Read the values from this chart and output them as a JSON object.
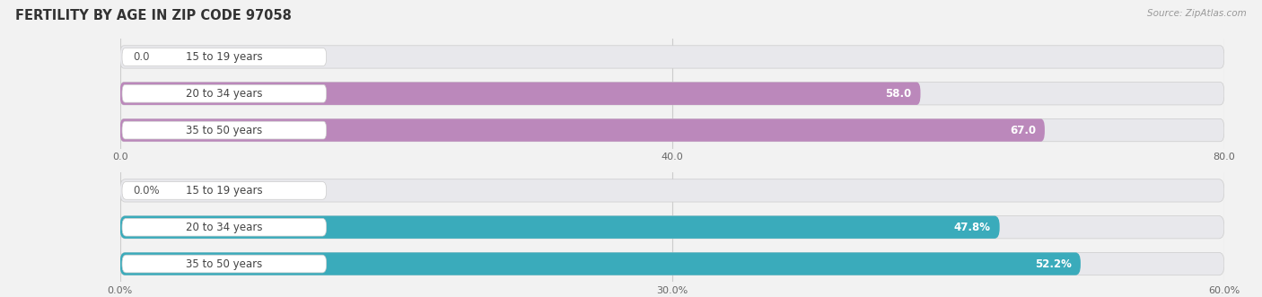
{
  "title": "FERTILITY BY AGE IN ZIP CODE 97058",
  "source": "Source: ZipAtlas.com",
  "chart1": {
    "categories": [
      "15 to 19 years",
      "20 to 34 years",
      "35 to 50 years"
    ],
    "values": [
      0.0,
      58.0,
      67.0
    ],
    "xlim": [
      0,
      80.0
    ],
    "xticks": [
      0.0,
      40.0,
      80.0
    ],
    "xtick_labels": [
      "0.0",
      "40.0",
      "80.0"
    ],
    "bar_color": "#bb88bb",
    "bar_bg_color": "#e8e8ec",
    "label_pill_color": "#f5f5f5",
    "label_color_inside": "#ffffff",
    "label_color_outside": "#555555"
  },
  "chart2": {
    "categories": [
      "15 to 19 years",
      "20 to 34 years",
      "35 to 50 years"
    ],
    "values": [
      0.0,
      47.8,
      52.2
    ],
    "xlim": [
      0,
      60.0
    ],
    "xticks": [
      0.0,
      30.0,
      60.0
    ],
    "xtick_labels": [
      "0.0%",
      "30.0%",
      "60.0%"
    ],
    "bar_color": "#3aabbb",
    "bar_bg_color": "#e8e8ec",
    "label_pill_color": "#f5f5f5",
    "label_color_inside": "#ffffff",
    "label_color_outside": "#555555"
  },
  "bg_color": "#f2f2f2",
  "bar_height": 0.62,
  "label_fontsize": 8.5,
  "category_fontsize": 8.5,
  "title_fontsize": 10.5,
  "source_fontsize": 7.5
}
